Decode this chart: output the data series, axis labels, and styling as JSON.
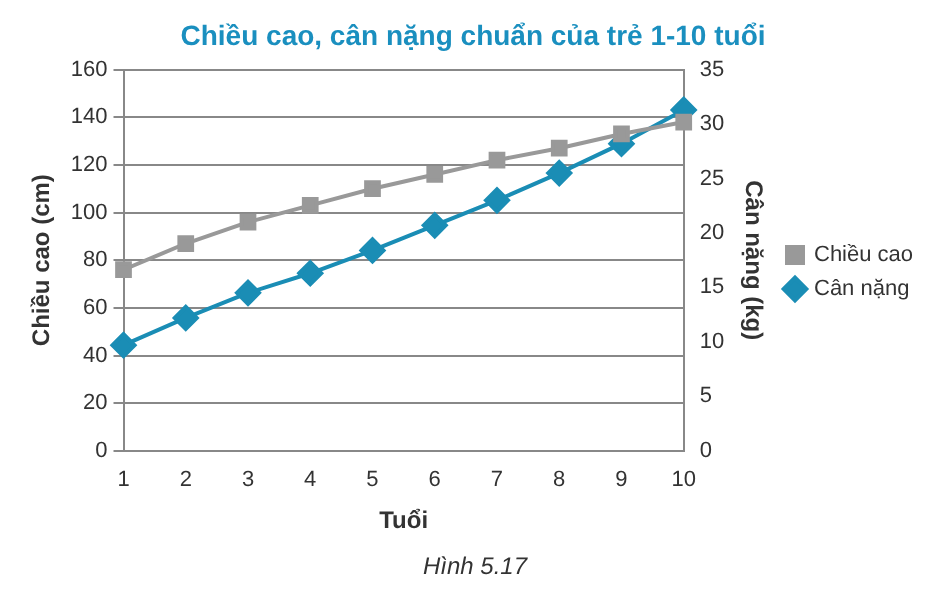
{
  "chart_data": {
    "type": "line",
    "title": "Chiều cao, cân nặng chuẩn của trẻ 1-10 tuổi",
    "xlabel": "Tuổi",
    "ylabel": "Chiều cao (cm)",
    "y2label": "Cân nặng (kg)",
    "categories": [
      "1",
      "2",
      "3",
      "4",
      "5",
      "6",
      "7",
      "8",
      "9",
      "10"
    ],
    "series": [
      {
        "name": "Chiều cao",
        "color": "#999999",
        "marker": "square",
        "values": [
          76,
          87,
          96,
          103,
          110,
          116,
          122,
          127,
          133,
          138
        ]
      },
      {
        "name": "Cân nặng",
        "color": "#1a8db5",
        "marker": "diamond",
        "axis": "y2",
        "values": [
          9.7,
          12.2,
          14.5,
          16.3,
          18.4,
          20.7,
          23,
          25.5,
          28.2,
          31.3
        ]
      }
    ],
    "ylim": [
      0,
      160
    ],
    "yticks": [
      0,
      20,
      40,
      60,
      80,
      100,
      120,
      140,
      160
    ],
    "y2lim": [
      0,
      35
    ],
    "y2ticks": [
      0,
      5,
      10,
      15,
      20,
      25,
      30,
      35
    ],
    "grid": "y",
    "legend": "right",
    "line_style": "solid",
    "annotations": [
      "Hình 5.17"
    ]
  }
}
